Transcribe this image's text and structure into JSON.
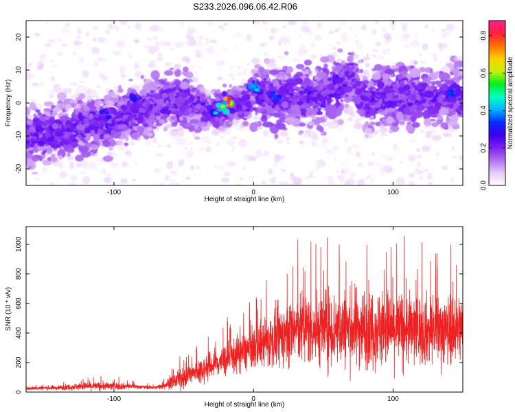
{
  "figure": {
    "title": "S233.2026.096.06.42.R06"
  },
  "chart_data": [
    {
      "type": "heatmap",
      "title": "S233.2026.096.06.42.R06",
      "xlabel": "Height of straight line (km)",
      "ylabel": "Frequency (Hz)",
      "xlim": [
        -163,
        150
      ],
      "ylim": [
        -25,
        25
      ],
      "xticks": [
        -100,
        0,
        100
      ],
      "yticks": [
        -20,
        -10,
        0,
        10,
        20
      ],
      "colorbar": {
        "label": "Normalized spectral amplitude",
        "range": [
          0.0,
          0.88
        ],
        "ticks": [
          0.0,
          0.2,
          0.4,
          0.6,
          0.8
        ],
        "colormap": [
          "#ffffff",
          "#e6c8f8",
          "#b070f0",
          "#7a1ef2",
          "#3a00f0",
          "#0030ff",
          "#00b8ff",
          "#00ffc0",
          "#00f020",
          "#c8f000",
          "#ffd000",
          "#ff7000",
          "#ff2040",
          "#ff2090"
        ]
      },
      "trend": {
        "x": [
          -163,
          -140,
          -120,
          -100,
          -80,
          -60,
          -45,
          -35,
          -25,
          -15,
          -10,
          -5,
          0,
          5,
          15,
          30,
          45,
          60,
          70,
          80,
          100,
          120,
          150
        ],
        "y": [
          -10,
          -9,
          -7,
          -5.5,
          -2,
          1,
          0,
          -2,
          -2.5,
          0,
          0,
          -1,
          4,
          3,
          1,
          2,
          2,
          4,
          8,
          1,
          2,
          2,
          2
        ]
      },
      "hotspots": [
        {
          "x": -18,
          "y": 0,
          "value": 0.85
        },
        {
          "x": -22,
          "y": -1,
          "value": 0.6
        },
        {
          "x": -27,
          "y": -3,
          "value": 0.45
        },
        {
          "x": 2,
          "y": 4,
          "value": 0.45
        },
        {
          "x": 0,
          "y": 5,
          "value": 0.4
        },
        {
          "x": 15,
          "y": 2,
          "value": 0.35
        },
        {
          "x": 40,
          "y": 3,
          "value": 0.3
        },
        {
          "x": 140,
          "y": 3,
          "value": 0.35
        },
        {
          "x": -85,
          "y": 2,
          "value": 0.3
        },
        {
          "x": -105,
          "y": -3,
          "value": 0.3
        },
        {
          "x": 60,
          "y": 8,
          "value": 0.3
        }
      ]
    },
    {
      "type": "line",
      "xlabel": "Height of straight line (km)",
      "ylabel": "SNR (10 * v/v)",
      "xlim": [
        -163,
        150
      ],
      "ylim": [
        0,
        1120
      ],
      "xticks": [
        -100,
        0,
        100
      ],
      "yticks": [
        0,
        200,
        400,
        600,
        800,
        1000
      ],
      "series": [
        {
          "name": "SNR",
          "color": "#ee2222",
          "envelope": {
            "x": [
              -163,
              -140,
              -120,
              -100,
              -90,
              -80,
              -70,
              -60,
              -50,
              -40,
              -30,
              -20,
              -10,
              0,
              10,
              20,
              30,
              40,
              60,
              80,
              100,
              120,
              150
            ],
            "mid": [
              25,
              30,
              40,
              40,
              40,
              35,
              30,
              60,
              100,
              140,
              180,
              220,
              260,
              300,
              340,
              380,
              430,
              430,
              430,
              440,
              430,
              420,
              430
            ],
            "amp": [
              15,
              20,
              35,
              35,
              25,
              15,
              15,
              50,
              90,
              110,
              120,
              140,
              160,
              180,
              220,
              260,
              300,
              320,
              330,
              340,
              330,
              300,
              300
            ]
          }
        }
      ]
    }
  ]
}
